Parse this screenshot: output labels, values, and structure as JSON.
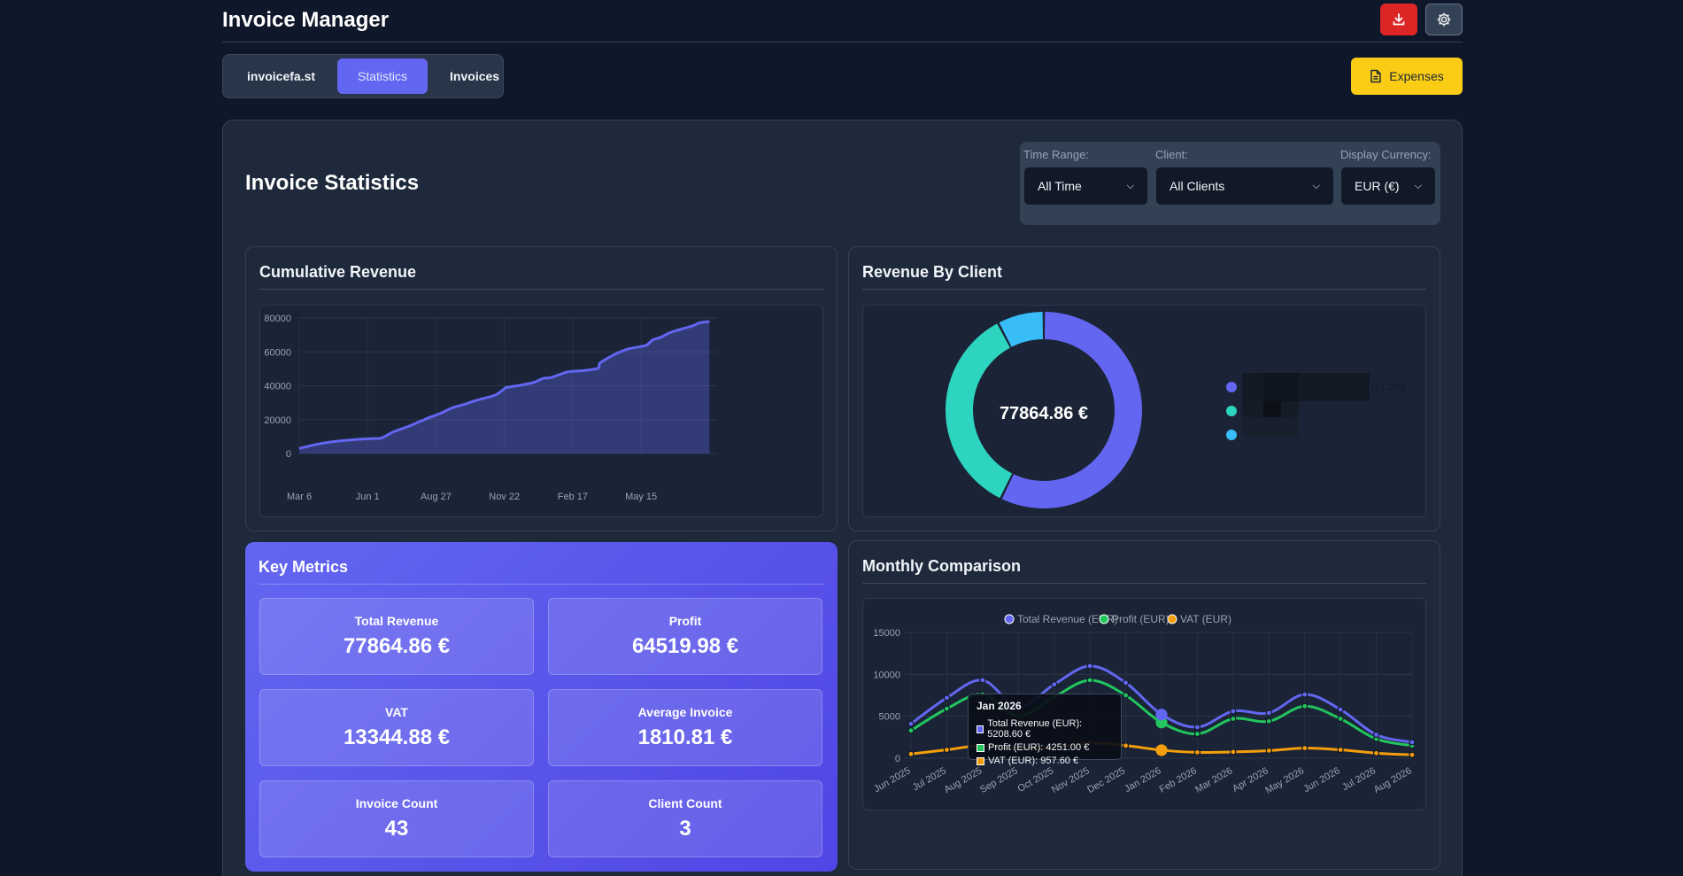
{
  "header": {
    "title": "Invoice Manager",
    "download_icon": "download-icon",
    "settings_icon": "gear-icon"
  },
  "tabs": [
    {
      "label": "invoicefa.st",
      "active": false
    },
    {
      "label": "Statistics",
      "active": true
    },
    {
      "label": "Invoices",
      "active": false
    }
  ],
  "expenses_button": {
    "label": "Expenses",
    "icon": "document-icon"
  },
  "stats": {
    "title": "Invoice Statistics",
    "filters": {
      "time_range": {
        "label": "Time Range:",
        "value": "All Time"
      },
      "client": {
        "label": "Client:",
        "value": "All Clients"
      },
      "currency": {
        "label": "Display Currency:",
        "value": "EUR (€)"
      }
    }
  },
  "cumulative": {
    "title": "Cumulative Revenue"
  },
  "by_client": {
    "title": "Revenue By Client",
    "center_label": "77864.86 €",
    "legend_pct": "(57.2%)"
  },
  "monthly": {
    "title": "Monthly Comparison",
    "tooltip": {
      "title": "Jan 2026",
      "lines": [
        "Total Revenue (EUR): 5208.60 €",
        "Profit (EUR): 4251.00 €",
        "VAT (EUR): 957.60 €"
      ]
    }
  },
  "metrics": {
    "title": "Key Metrics",
    "items": [
      {
        "label": "Total Revenue",
        "value": "77864.86 €"
      },
      {
        "label": "Profit",
        "value": "64519.98 €"
      },
      {
        "label": "VAT",
        "value": "13344.88 €"
      },
      {
        "label": "Average Invoice",
        "value": "1810.81 €"
      },
      {
        "label": "Invoice Count",
        "value": "43"
      },
      {
        "label": "Client Count",
        "value": "3"
      }
    ]
  },
  "colors": {
    "accent": "#6366f1",
    "danger": "#dc2626",
    "warning": "#facc15",
    "teal": "#2dd4bf",
    "sky": "#38bdf8",
    "green": "#22c55e",
    "orange": "#f59e0b"
  },
  "chart_data": [
    {
      "type": "area",
      "title": "Cumulative Revenue",
      "xlabel": "",
      "ylabel": "",
      "ylim": [
        0,
        80000
      ],
      "yticks": [
        0,
        20000,
        40000,
        60000,
        80000
      ],
      "xtick_labels": [
        "Mar 6",
        "Jun 1",
        "Aug 27",
        "Nov 22",
        "Feb 17",
        "May 15"
      ],
      "xlim": [
        0,
        620
      ],
      "xticks": [
        0,
        87,
        174,
        261,
        348,
        435
      ],
      "grid": true,
      "x": [
        0,
        20,
        40,
        60,
        80,
        95,
        105,
        120,
        140,
        160,
        170,
        180,
        195,
        210,
        220,
        230,
        250,
        262,
        265,
        285,
        300,
        310,
        320,
        340,
        350,
        360,
        380,
        382,
        390,
        400,
        410,
        420,
        440,
        445,
        450,
        460,
        470,
        480,
        500,
        510,
        522
      ],
      "y": [
        3000,
        5200,
        6800,
        7800,
        8500,
        8800,
        9200,
        12800,
        16200,
        20200,
        22000,
        23800,
        27000,
        29000,
        30600,
        32000,
        34600,
        38600,
        39100,
        40600,
        42200,
        44300,
        44800,
        48000,
        48600,
        48900,
        50300,
        53100,
        55600,
        58200,
        60300,
        61900,
        63600,
        65100,
        67100,
        68600,
        71000,
        72600,
        75300,
        77200,
        77864.86
      ]
    },
    {
      "type": "pie",
      "title": "Revenue By Client",
      "slices": [
        {
          "value": 57.2,
          "color": "#6366f1"
        },
        {
          "value": 35.1,
          "color": "#2dd4bf"
        },
        {
          "value": 7.7,
          "color": "#38bdf8"
        }
      ],
      "legend_position": "right"
    },
    {
      "type": "line",
      "title": "Monthly Comparison",
      "categories": [
        "Jun 2025",
        "Jul 2025",
        "Aug 2025",
        "Sep 2025",
        "Oct 2025",
        "Nov 2025",
        "Dec 2025",
        "Jan 2026",
        "Feb 2026",
        "Mar 2026",
        "Apr 2026",
        "May 2026",
        "Jun 2026",
        "Jul 2026",
        "Aug 2026"
      ],
      "ylim": [
        0,
        15000
      ],
      "yticks": [
        0,
        5000,
        10000,
        15000
      ],
      "grid": true,
      "legend_position": "top",
      "series": [
        {
          "name": "Total Revenue (EUR)",
          "color": "#6366f1",
          "values": [
            4100,
            7200,
            9300,
            6100,
            8800,
            11000,
            9000,
            5208.6,
            3700,
            5600,
            5400,
            7600,
            5800,
            2800,
            1900
          ]
        },
        {
          "name": "Profit (EUR)",
          "color": "#22c55e",
          "values": [
            3300,
            5900,
            7600,
            5000,
            7300,
            9300,
            7500,
            4251.0,
            2900,
            4700,
            4400,
            6200,
            4700,
            2300,
            1500
          ]
        },
        {
          "name": "VAT (EUR)",
          "color": "#f59e0b",
          "values": [
            500,
            1000,
            1500,
            1100,
            1300,
            1800,
            1500,
            957.6,
            700,
            750,
            900,
            1200,
            1000,
            600,
            400
          ]
        }
      ]
    }
  ]
}
